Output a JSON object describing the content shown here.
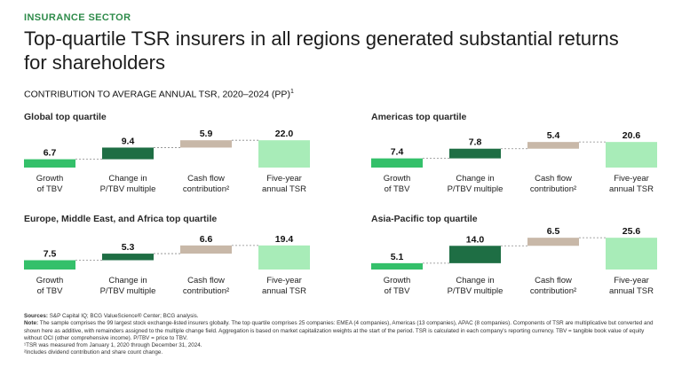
{
  "header": {
    "sector": "INSURANCE SECTOR",
    "title": "Top-quartile TSR insurers in all regions generated substantial returns for shareholders",
    "subtitle": "CONTRIBUTION TO AVERAGE ANNUAL TSR, 2020–2024 (PP)",
    "subtitle_sup": "1"
  },
  "colors": {
    "growth": "#34c06a",
    "change": "#1e6e44",
    "cash": "#c8b8a8",
    "total": "#a8ecb8",
    "connector": "#8a8a8a"
  },
  "chart_data": [
    {
      "type": "bar",
      "subtype": "waterfall",
      "title": "Global top quartile",
      "categories": [
        "Growth\nof TBV",
        "Change in\nP/TBV multiple",
        "Cash flow\ncontribution²",
        "Five-year\nannual TSR"
      ],
      "values": [
        6.7,
        9.4,
        5.9,
        22.0
      ],
      "labels": [
        "6.7",
        "9.4",
        "5.9",
        "22.0"
      ]
    },
    {
      "type": "bar",
      "subtype": "waterfall",
      "title": "Americas top quartile",
      "categories": [
        "Growth\nof TBV",
        "Change in\nP/TBV multiple",
        "Cash flow\ncontribution²",
        "Five-year\nannual TSR"
      ],
      "values": [
        7.4,
        7.8,
        5.4,
        20.6
      ],
      "labels": [
        "7.4",
        "7.8",
        "5.4",
        "20.6"
      ]
    },
    {
      "type": "bar",
      "subtype": "waterfall",
      "title": "Europe, Middle East, and Africa top quartile",
      "categories": [
        "Growth\nof TBV",
        "Change in\nP/TBV multiple",
        "Cash flow\ncontribution²",
        "Five-year\nannual TSR"
      ],
      "values": [
        7.5,
        5.3,
        6.6,
        19.4
      ],
      "labels": [
        "7.5",
        "5.3",
        "6.6",
        "19.4"
      ]
    },
    {
      "type": "bar",
      "subtype": "waterfall",
      "title": "Asia-Pacific top quartile",
      "categories": [
        "Growth\nof TBV",
        "Change in\nP/TBV multiple",
        "Cash flow\ncontribution²",
        "Five-year\nannual TSR"
      ],
      "values": [
        5.1,
        14.0,
        6.5,
        25.6
      ],
      "labels": [
        "5.1",
        "14.0",
        "6.5",
        "25.6"
      ]
    }
  ],
  "notes": {
    "sources_label": "Sources:",
    "sources": "S&P Capital IQ; BCG ValueScience® Center; BCG analysis.",
    "note_label": "Note:",
    "note": "The sample comprises the 99 largest stock exchange-listed insurers globally. The top quartile comprises 25 companies: EMEA (4 companies), Americas (13 companies), APAC (8 companies). Components of TSR are multiplicative but converted and shown here as additive, with remainders assigned to the multiple change field. Aggregation is based on market capitalization weights at the start of the period. TSR is calculated in each company's reporting currency. TBV = tangible book value of equity without OCI (other comprehensive income). P/TBV = price to TBV.",
    "footnote1": "¹TSR was measured from January 1, 2020 through December 31, 2024.",
    "footnote2": "²Includes dividend contribution and share count change."
  }
}
